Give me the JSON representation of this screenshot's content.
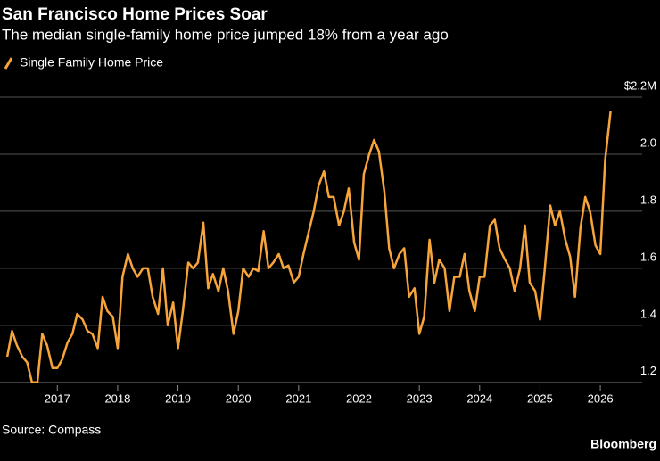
{
  "chart_data": {
    "type": "line",
    "title": "San Francisco Home Prices Soar",
    "subtitle": "The median single-family home price jumped 18% from a year ago",
    "source": "Source: Compass",
    "brand": "Bloomberg",
    "x": [
      2016.17,
      2016.25,
      2016.33,
      2016.42,
      2016.5,
      2016.58,
      2016.67,
      2016.75,
      2016.83,
      2016.92,
      2017.0,
      2017.08,
      2017.17,
      2017.25,
      2017.33,
      2017.42,
      2017.5,
      2017.58,
      2017.67,
      2017.75,
      2017.83,
      2017.92,
      2018.0,
      2018.08,
      2018.17,
      2018.25,
      2018.33,
      2018.42,
      2018.5,
      2018.58,
      2018.67,
      2018.75,
      2018.83,
      2018.92,
      2019.0,
      2019.08,
      2019.17,
      2019.25,
      2019.33,
      2019.42,
      2019.5,
      2019.58,
      2019.67,
      2019.75,
      2019.83,
      2019.92,
      2020.0,
      2020.08,
      2020.17,
      2020.25,
      2020.33,
      2020.42,
      2020.5,
      2020.58,
      2020.67,
      2020.75,
      2020.83,
      2020.92,
      2021.0,
      2021.08,
      2021.17,
      2021.25,
      2021.33,
      2021.42,
      2021.5,
      2021.58,
      2021.67,
      2021.75,
      2021.83,
      2021.92,
      2022.0,
      2022.08,
      2022.17,
      2022.25,
      2022.33,
      2022.42,
      2022.5,
      2022.58,
      2022.67,
      2022.75,
      2022.83,
      2022.92,
      2023.0,
      2023.08,
      2023.17,
      2023.25,
      2023.33,
      2023.42,
      2023.5,
      2023.58,
      2023.67,
      2023.75,
      2023.83,
      2023.92,
      2024.0,
      2024.08,
      2024.17,
      2024.25,
      2024.33,
      2024.42,
      2024.5,
      2024.58,
      2024.67,
      2024.75,
      2024.83,
      2024.92,
      2025.0,
      2025.08,
      2025.17,
      2025.25,
      2025.33,
      2025.42,
      2025.5,
      2025.58,
      2025.67,
      2025.75,
      2025.83,
      2025.92,
      2026.0,
      2026.08,
      2026.17
    ],
    "series": [
      {
        "name": "Single Family Home Price",
        "color": "#f7a43a",
        "values": [
          1.29,
          1.38,
          1.33,
          1.29,
          1.27,
          1.2,
          1.2,
          1.37,
          1.33,
          1.25,
          1.25,
          1.28,
          1.34,
          1.37,
          1.44,
          1.42,
          1.38,
          1.37,
          1.32,
          1.5,
          1.45,
          1.43,
          1.32,
          1.57,
          1.65,
          1.6,
          1.57,
          1.6,
          1.6,
          1.5,
          1.44,
          1.6,
          1.4,
          1.48,
          1.32,
          1.45,
          1.62,
          1.6,
          1.62,
          1.76,
          1.53,
          1.58,
          1.52,
          1.6,
          1.52,
          1.37,
          1.45,
          1.6,
          1.57,
          1.6,
          1.59,
          1.73,
          1.6,
          1.62,
          1.65,
          1.6,
          1.61,
          1.55,
          1.57,
          1.65,
          1.73,
          1.8,
          1.89,
          1.94,
          1.85,
          1.85,
          1.75,
          1.8,
          1.88,
          1.69,
          1.63,
          1.93,
          2.0,
          2.05,
          2.01,
          1.87,
          1.67,
          1.6,
          1.65,
          1.67,
          1.5,
          1.53,
          1.37,
          1.43,
          1.7,
          1.55,
          1.63,
          1.6,
          1.45,
          1.57,
          1.57,
          1.65,
          1.52,
          1.45,
          1.57,
          1.57,
          1.75,
          1.77,
          1.67,
          1.63,
          1.6,
          1.52,
          1.6,
          1.75,
          1.55,
          1.52,
          1.42,
          1.6,
          1.82,
          1.75,
          1.8,
          1.7,
          1.64,
          1.5,
          1.74,
          1.85,
          1.8,
          1.68,
          1.65,
          1.98,
          2.15
        ]
      }
    ],
    "xlim": [
      2016.05,
      2026.25
    ],
    "xticks": [
      2017,
      2018,
      2019,
      2020,
      2021,
      2022,
      2023,
      2024,
      2025,
      2026
    ],
    "ylim": [
      1.19,
      2.25
    ],
    "yticks": [
      {
        "value": 1.2,
        "label": "1.2"
      },
      {
        "value": 1.4,
        "label": "1.4"
      },
      {
        "value": 1.6,
        "label": "1.6"
      },
      {
        "value": 1.8,
        "label": "1.8"
      },
      {
        "value": 2,
        "label": "2.0"
      },
      {
        "value": 2.2,
        "label": "$2.2M"
      }
    ],
    "grid": true
  }
}
